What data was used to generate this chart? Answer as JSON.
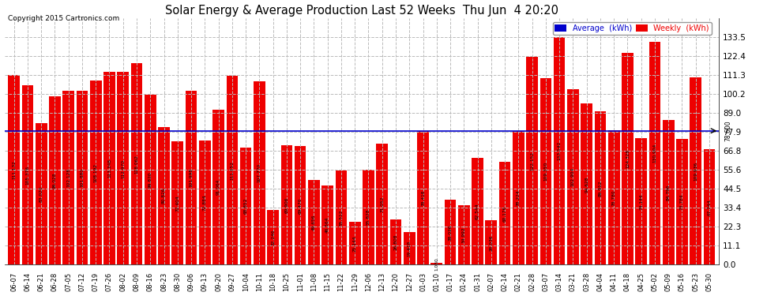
{
  "title": "Solar Energy & Average Production Last 52 Weeks  Thu Jun  4 20:20",
  "copyright": "Copyright 2015 Cartronics.com",
  "average_line": 78.6,
  "average_label": "78.600",
  "bar_color": "#ee0000",
  "average_line_color": "#0000cc",
  "background_color": "#ffffff",
  "grid_color": "#bbbbbb",
  "ylim": [
    0,
    144.6
  ],
  "yticks": [
    0.0,
    11.1,
    22.3,
    33.4,
    44.5,
    55.6,
    66.8,
    77.9,
    89.0,
    100.2,
    111.3,
    122.4,
    133.5
  ],
  "legend_avg_color": "#0000cc",
  "legend_weekly_color": "#ee0000",
  "categories": [
    "06-07",
    "06-14",
    "06-21",
    "06-28",
    "07-05",
    "07-12",
    "07-19",
    "07-26",
    "08-02",
    "08-09",
    "08-16",
    "08-23",
    "08-30",
    "09-06",
    "09-13",
    "09-20",
    "09-27",
    "10-04",
    "10-11",
    "10-18",
    "10-25",
    "11-01",
    "11-08",
    "11-15",
    "11-22",
    "11-29",
    "12-06",
    "12-13",
    "12-20",
    "12-27",
    "01-03",
    "01-10",
    "01-17",
    "01-24",
    "01-31",
    "02-07",
    "02-14",
    "02-21",
    "02-28",
    "03-07",
    "03-14",
    "03-21",
    "03-28",
    "04-04",
    "04-11",
    "04-18",
    "04-25",
    "05-02",
    "05-09",
    "05-16",
    "05-23",
    "05-30"
  ],
  "values": [
    111.132,
    105.376,
    83.02,
    99.028,
    102.128,
    101.88,
    108.192,
    113.348,
    112.97,
    118.062,
    99.82,
    80.826,
    72.404,
    101.998,
    72.884,
    91.064,
    111.052,
    68.852,
    107.77,
    32.246,
    69.906,
    69.47,
    49.656,
    46.564,
    55.512,
    25.144,
    55.828,
    71.052,
    26.808,
    19.418,
    78.418,
    1.03,
    38.026,
    34.992,
    62.544,
    26.036,
    60.176,
    78.224,
    122.152,
    109.35,
    133.542,
    102.904,
    94.628,
    89.912,
    78.78,
    124.328,
    74.144,
    130.904,
    84.796,
    73.784,
    109.936,
    67.744
  ],
  "value_labels": [
    "111.132",
    "105.376",
    "83.020",
    "99.028",
    "102.128",
    "101.880",
    "108.192",
    "113.348",
    "112.970",
    "118.062",
    "99.820",
    "80.826",
    "72.404",
    "101.998",
    "72.884",
    "91.064",
    "111.052",
    "68.852",
    "107.770",
    "32.246",
    "69.906",
    "69.470",
    "49.656",
    "46.564",
    "55.512",
    "25.144",
    "55.828",
    "71.052",
    "26.808",
    "19.418",
    "78.418",
    "1.030",
    "38.026",
    "34.992",
    "62.544",
    "26.036",
    "60.176",
    "78.224",
    "122.152",
    "109.350",
    "133.542",
    "102.904",
    "94.628",
    "89.912",
    "78.780",
    "124.328",
    "74.144",
    "130.904",
    "84.796",
    "73.784",
    "109.936",
    "67.744"
  ]
}
